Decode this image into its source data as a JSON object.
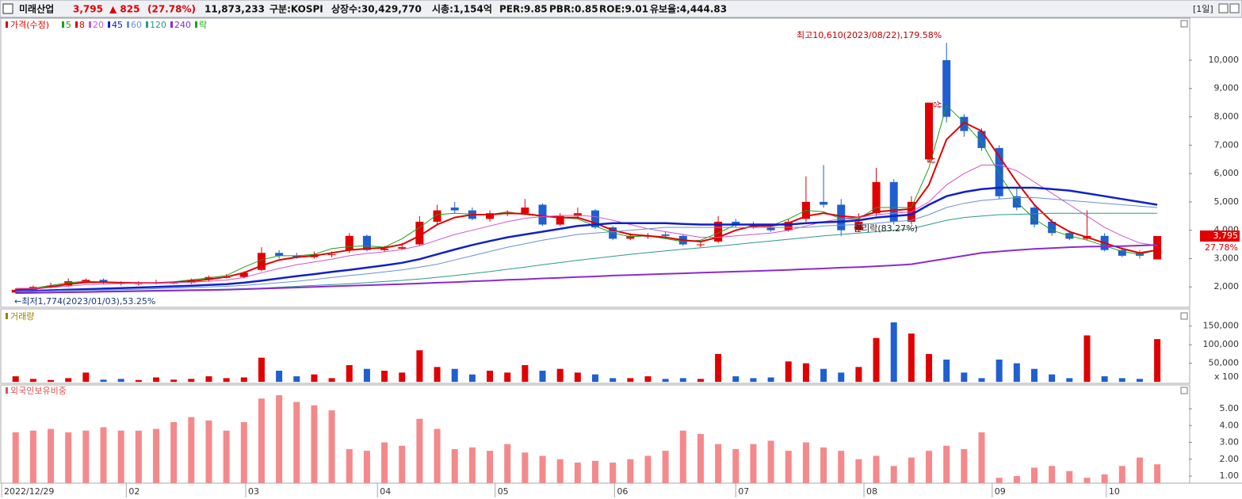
{
  "header": {
    "name": "미래산업",
    "price": "3,795",
    "change": "▲ 825",
    "rate": "(27.78%)",
    "volume": "11,873,233",
    "market": "구분:KOSPI",
    "shares": "상장수:30,429,770",
    "cap": "시총:1,154억",
    "per": "PER:9.85",
    "pbr": "PBR:0.85",
    "roe": "ROE:9.01",
    "reserve": "유보율:4,444.83",
    "period": "[1일]"
  },
  "chart_data": [
    {
      "type": "candlestick",
      "title": "가격(수정)",
      "up_color": "#e00000",
      "down_color": "#1f5fd0",
      "xlim": [
        -0.8,
        66.8
      ],
      "ylim": [
        1280,
        11480
      ],
      "yticks": [
        {
          "value": 2000,
          "label": "2,000"
        },
        {
          "value": 3000,
          "label": "3,000"
        },
        {
          "value": 4000,
          "label": "4,000"
        },
        {
          "value": 5000,
          "label": "5,000"
        },
        {
          "value": 6000,
          "label": "6,000"
        },
        {
          "value": 7000,
          "label": "7,000"
        },
        {
          "value": 8000,
          "label": "8,000"
        },
        {
          "value": 9000,
          "label": "9,000"
        },
        {
          "value": 10000,
          "label": "10,000"
        }
      ],
      "open": [
        1800,
        1900,
        2000,
        2050,
        2200,
        2250,
        2150,
        2100,
        2150,
        2150,
        2150,
        2250,
        2350,
        2350,
        2600,
        3200,
        3100,
        3050,
        3150,
        3300,
        3800,
        3300,
        3350,
        3500,
        4300,
        4800,
        4700,
        4400,
        4600,
        4600,
        4900,
        4200,
        4500,
        4700,
        4100,
        3700,
        3800,
        3850,
        3800,
        3500,
        3600,
        4300,
        4200,
        4100,
        4000,
        4400,
        5000,
        4900,
        4000,
        4600,
        5700,
        4300,
        6500,
        10000,
        8000,
        7500,
        6900,
        5200,
        4800,
        4300,
        3900,
        3700,
        3800,
        3300,
        3200,
        2970
      ],
      "high": [
        1950,
        2050,
        2150,
        2300,
        2300,
        2300,
        2200,
        2200,
        2250,
        2200,
        2300,
        2400,
        2450,
        2550,
        3400,
        3300,
        3200,
        3250,
        3250,
        3900,
        3850,
        3450,
        3550,
        4500,
        4900,
        5000,
        4800,
        4700,
        4700,
        5100,
        4950,
        4600,
        4800,
        4750,
        4150,
        3900,
        3900,
        3950,
        3850,
        3600,
        4500,
        4400,
        4300,
        4200,
        4400,
        5900,
        6300,
        5100,
        4600,
        6200,
        5800,
        5200,
        8500,
        10610,
        8100,
        7600,
        7000,
        5500,
        4900,
        4400,
        4000,
        4700,
        3900,
        3400,
        3300,
        3795
      ],
      "low": [
        1774,
        1850,
        1950,
        2000,
        2150,
        2100,
        2050,
        2050,
        2100,
        2100,
        2100,
        2200,
        2300,
        2300,
        2550,
        3000,
        3000,
        3000,
        3050,
        3200,
        3250,
        3250,
        3300,
        3450,
        4200,
        4600,
        4350,
        4300,
        4500,
        4550,
        4150,
        4150,
        4400,
        4050,
        3650,
        3650,
        3700,
        3700,
        3450,
        3400,
        3550,
        4100,
        4050,
        3950,
        3950,
        4300,
        4800,
        3800,
        3950,
        4500,
        4200,
        4200,
        6400,
        7800,
        7300,
        6800,
        5100,
        4700,
        4100,
        3800,
        3650,
        3650,
        3250,
        3050,
        3000,
        2970
      ],
      "close": [
        1900,
        2000,
        2050,
        2200,
        2250,
        2150,
        2100,
        2150,
        2150,
        2150,
        2250,
        2350,
        2350,
        2500,
        3200,
        3100,
        3050,
        3150,
        3150,
        3800,
        3300,
        3350,
        3400,
        4300,
        4700,
        4700,
        4400,
        4600,
        4600,
        4800,
        4200,
        4500,
        4600,
        4100,
        3700,
        3800,
        3800,
        3800,
        3500,
        3500,
        4300,
        4200,
        4100,
        4000,
        4300,
        5000,
        4900,
        4000,
        4300,
        5700,
        4300,
        5000,
        8500,
        8000,
        7500,
        6900,
        5200,
        4800,
        4200,
        3900,
        3700,
        3800,
        3300,
        3100,
        3100,
        3795
      ],
      "series": [
        {
          "name": "5",
          "color": "#19a319",
          "width": 1,
          "values": [
            1900,
            1950,
            2050,
            2150,
            2200,
            2170,
            2130,
            2130,
            2150,
            2180,
            2250,
            2320,
            2400,
            2700,
            2950,
            3100,
            3100,
            3150,
            3350,
            3420,
            3450,
            3400,
            3700,
            4100,
            4550,
            4600,
            4570,
            4550,
            4650,
            4550,
            4500,
            4450,
            4400,
            4150,
            3900,
            3770,
            3800,
            3700,
            3600,
            3650,
            3900,
            4200,
            4200,
            4150,
            4400,
            4700,
            4650,
            4400,
            4400,
            4800,
            4800,
            4800,
            6200,
            8400,
            7800,
            7100,
            6000,
            5000,
            4400,
            4000,
            3800,
            3650,
            3450,
            3250,
            3150,
            3300
          ]
        },
        {
          "name": "8",
          "color": "#e00000",
          "width": 2,
          "values": [
            1900,
            1930,
            2000,
            2100,
            2160,
            2170,
            2150,
            2140,
            2140,
            2160,
            2200,
            2270,
            2350,
            2500,
            2750,
            2950,
            3050,
            3100,
            3200,
            3300,
            3350,
            3380,
            3500,
            3800,
            4200,
            4450,
            4550,
            4550,
            4600,
            4580,
            4500,
            4450,
            4450,
            4250,
            4000,
            3850,
            3800,
            3750,
            3650,
            3600,
            3750,
            4000,
            4150,
            4150,
            4250,
            4500,
            4600,
            4500,
            4450,
            4650,
            4700,
            4750,
            5600,
            7200,
            7800,
            7500,
            6600,
            5700,
            4900,
            4300,
            3950,
            3750,
            3550,
            3350,
            3200,
            3300
          ]
        },
        {
          "name": "20",
          "color": "#cc55cc",
          "width": 1,
          "values": [
            1950,
            1950,
            1980,
            2030,
            2080,
            2100,
            2120,
            2130,
            2140,
            2150,
            2170,
            2200,
            2240,
            2330,
            2500,
            2650,
            2780,
            2880,
            2980,
            3100,
            3180,
            3240,
            3320,
            3450,
            3650,
            3850,
            4000,
            4150,
            4300,
            4420,
            4480,
            4520,
            4530,
            4480,
            4350,
            4200,
            4050,
            3950,
            3850,
            3750,
            3750,
            3800,
            3850,
            3900,
            4000,
            4150,
            4300,
            4400,
            4450,
            4550,
            4600,
            4650,
            5000,
            5600,
            6000,
            6300,
            6300,
            6100,
            5700,
            5300,
            4900,
            4500,
            4100,
            3800,
            3550,
            3450
          ]
        },
        {
          "name": "45",
          "color": "#1020c8",
          "width": 2.5,
          "values": [
            1850,
            1860,
            1880,
            1900,
            1920,
            1940,
            1960,
            1980,
            2000,
            2020,
            2040,
            2070,
            2100,
            2150,
            2220,
            2300,
            2380,
            2450,
            2530,
            2600,
            2680,
            2760,
            2850,
            2980,
            3150,
            3320,
            3480,
            3620,
            3750,
            3850,
            3950,
            4050,
            4150,
            4200,
            4250,
            4250,
            4250,
            4250,
            4220,
            4200,
            4200,
            4200,
            4200,
            4200,
            4200,
            4250,
            4280,
            4300,
            4350,
            4450,
            4500,
            4550,
            4900,
            5200,
            5350,
            5450,
            5500,
            5500,
            5500,
            5450,
            5400,
            5300,
            5200,
            5100,
            5000,
            4900
          ]
        },
        {
          "name": "60",
          "color": "#6a8fd8",
          "width": 1,
          "values": [
            1850,
            1850,
            1860,
            1870,
            1880,
            1890,
            1900,
            1920,
            1940,
            1960,
            1980,
            2000,
            2020,
            2050,
            2100,
            2150,
            2200,
            2260,
            2330,
            2400,
            2460,
            2530,
            2600,
            2700,
            2800,
            2950,
            3100,
            3250,
            3400,
            3520,
            3650,
            3750,
            3850,
            3900,
            3950,
            4000,
            4050,
            4100,
            4100,
            4100,
            4100,
            4100,
            4100,
            4100,
            4100,
            4100,
            4150,
            4180,
            4200,
            4250,
            4300,
            4350,
            4550,
            4800,
            4950,
            5050,
            5100,
            5150,
            5150,
            5100,
            5050,
            5000,
            4950,
            4900,
            4850,
            4800
          ]
        },
        {
          "name": "120",
          "color": "#2a9a8a",
          "width": 1,
          "values": [
            1800,
            1810,
            1820,
            1830,
            1840,
            1850,
            1860,
            1870,
            1880,
            1890,
            1900,
            1910,
            1920,
            1940,
            1960,
            1990,
            2020,
            2050,
            2080,
            2110,
            2150,
            2190,
            2230,
            2280,
            2340,
            2400,
            2470,
            2540,
            2620,
            2700,
            2780,
            2860,
            2940,
            3010,
            3080,
            3150,
            3210,
            3270,
            3330,
            3380,
            3440,
            3500,
            3560,
            3620,
            3680,
            3740,
            3800,
            3850,
            3900,
            3950,
            4000,
            4050,
            4200,
            4350,
            4450,
            4500,
            4550,
            4560,
            4580,
            4600,
            4600,
            4600,
            4600,
            4600,
            4600,
            4600
          ]
        },
        {
          "name": "240",
          "color": "#8a2bd0",
          "width": 2,
          "values": [
            1780,
            1790,
            1800,
            1810,
            1820,
            1830,
            1840,
            1850,
            1860,
            1870,
            1880,
            1890,
            1900,
            1920,
            1940,
            1960,
            1980,
            2000,
            2020,
            2040,
            2060,
            2080,
            2100,
            2120,
            2150,
            2170,
            2200,
            2220,
            2250,
            2270,
            2300,
            2320,
            2350,
            2370,
            2400,
            2420,
            2440,
            2460,
            2480,
            2500,
            2520,
            2540,
            2560,
            2580,
            2600,
            2630,
            2650,
            2680,
            2700,
            2730,
            2760,
            2800,
            2900,
            3000,
            3100,
            3200,
            3250,
            3300,
            3340,
            3370,
            3400,
            3420,
            3430,
            3440,
            3460,
            3480
          ]
        }
      ],
      "legend_extra": {
        "name": "락",
        "color": "#19a319"
      },
      "annotations": [
        "최고10,610(2023/08/22),179.58%",
        "←최저1,774(2023/01/03),53.25%",
        "권리락(83.27%)",
        "상",
        "상"
      ],
      "last_price_label": "3,795",
      "last_change_label": "27.78%"
    },
    {
      "type": "bar",
      "title": "거래량",
      "unit_label": "x 100",
      "ylim": [
        -4000,
        192000
      ],
      "yticks": [
        {
          "value": 50000,
          "label": "50,000"
        },
        {
          "value": 100000,
          "label": "100,000"
        },
        {
          "value": 150000,
          "label": "150,000"
        }
      ],
      "values": [
        15000,
        8000,
        5000,
        10000,
        25000,
        6000,
        8000,
        5000,
        12000,
        6000,
        8000,
        15000,
        10000,
        12000,
        65000,
        30000,
        15000,
        20000,
        10000,
        45000,
        35000,
        30000,
        25000,
        85000,
        40000,
        35000,
        20000,
        30000,
        25000,
        45000,
        30000,
        35000,
        25000,
        20000,
        10000,
        10000,
        15000,
        8000,
        10000,
        8000,
        75000,
        15000,
        10000,
        12000,
        55000,
        50000,
        35000,
        25000,
        40000,
        118000,
        160000,
        130000,
        75000,
        60000,
        25000,
        10000,
        60000,
        50000,
        35000,
        20000,
        10000,
        125000,
        15000,
        10000,
        8000,
        115000
      ]
    },
    {
      "type": "bar",
      "title": "외국인보유비중",
      "color": "#f4898b",
      "ylim": [
        0.58,
        6.41
      ],
      "yticks": [
        {
          "value": 1,
          "label": "1.00"
        },
        {
          "value": 2,
          "label": "2.00"
        },
        {
          "value": 3,
          "label": "3.00"
        },
        {
          "value": 4,
          "label": "4.00"
        },
        {
          "value": 5,
          "label": "5.00"
        }
      ],
      "xticks": [
        {
          "value": -0.8,
          "label": "2022/12/29"
        },
        {
          "value": 6.3,
          "label": "02"
        },
        {
          "value": 13.1,
          "label": "03"
        },
        {
          "value": 20.6,
          "label": "04"
        },
        {
          "value": 27.3,
          "label": "05"
        },
        {
          "value": 34.1,
          "label": "06"
        },
        {
          "value": 41.0,
          "label": "07"
        },
        {
          "value": 48.3,
          "label": "08"
        },
        {
          "value": 55.6,
          "label": "09"
        },
        {
          "value": 62.1,
          "label": "10"
        }
      ],
      "values": [
        3.6,
        3.7,
        3.8,
        3.6,
        3.7,
        3.9,
        3.7,
        3.7,
        3.8,
        4.2,
        4.5,
        4.3,
        3.7,
        4.2,
        5.6,
        5.8,
        5.4,
        5.2,
        4.9,
        2.6,
        2.5,
        3.0,
        2.8,
        4.4,
        3.8,
        2.6,
        2.7,
        2.5,
        2.9,
        2.4,
        2.2,
        2.0,
        1.8,
        1.9,
        1.8,
        2.0,
        2.2,
        2.5,
        3.7,
        3.5,
        2.9,
        2.6,
        2.9,
        3.1,
        2.5,
        3.0,
        2.7,
        2.5,
        2.0,
        2.2,
        1.6,
        2.1,
        2.5,
        2.8,
        2.6,
        3.6,
        0.9,
        1.0,
        1.5,
        1.6,
        1.3,
        0.9,
        1.1,
        1.6,
        2.1,
        1.7
      ]
    }
  ]
}
